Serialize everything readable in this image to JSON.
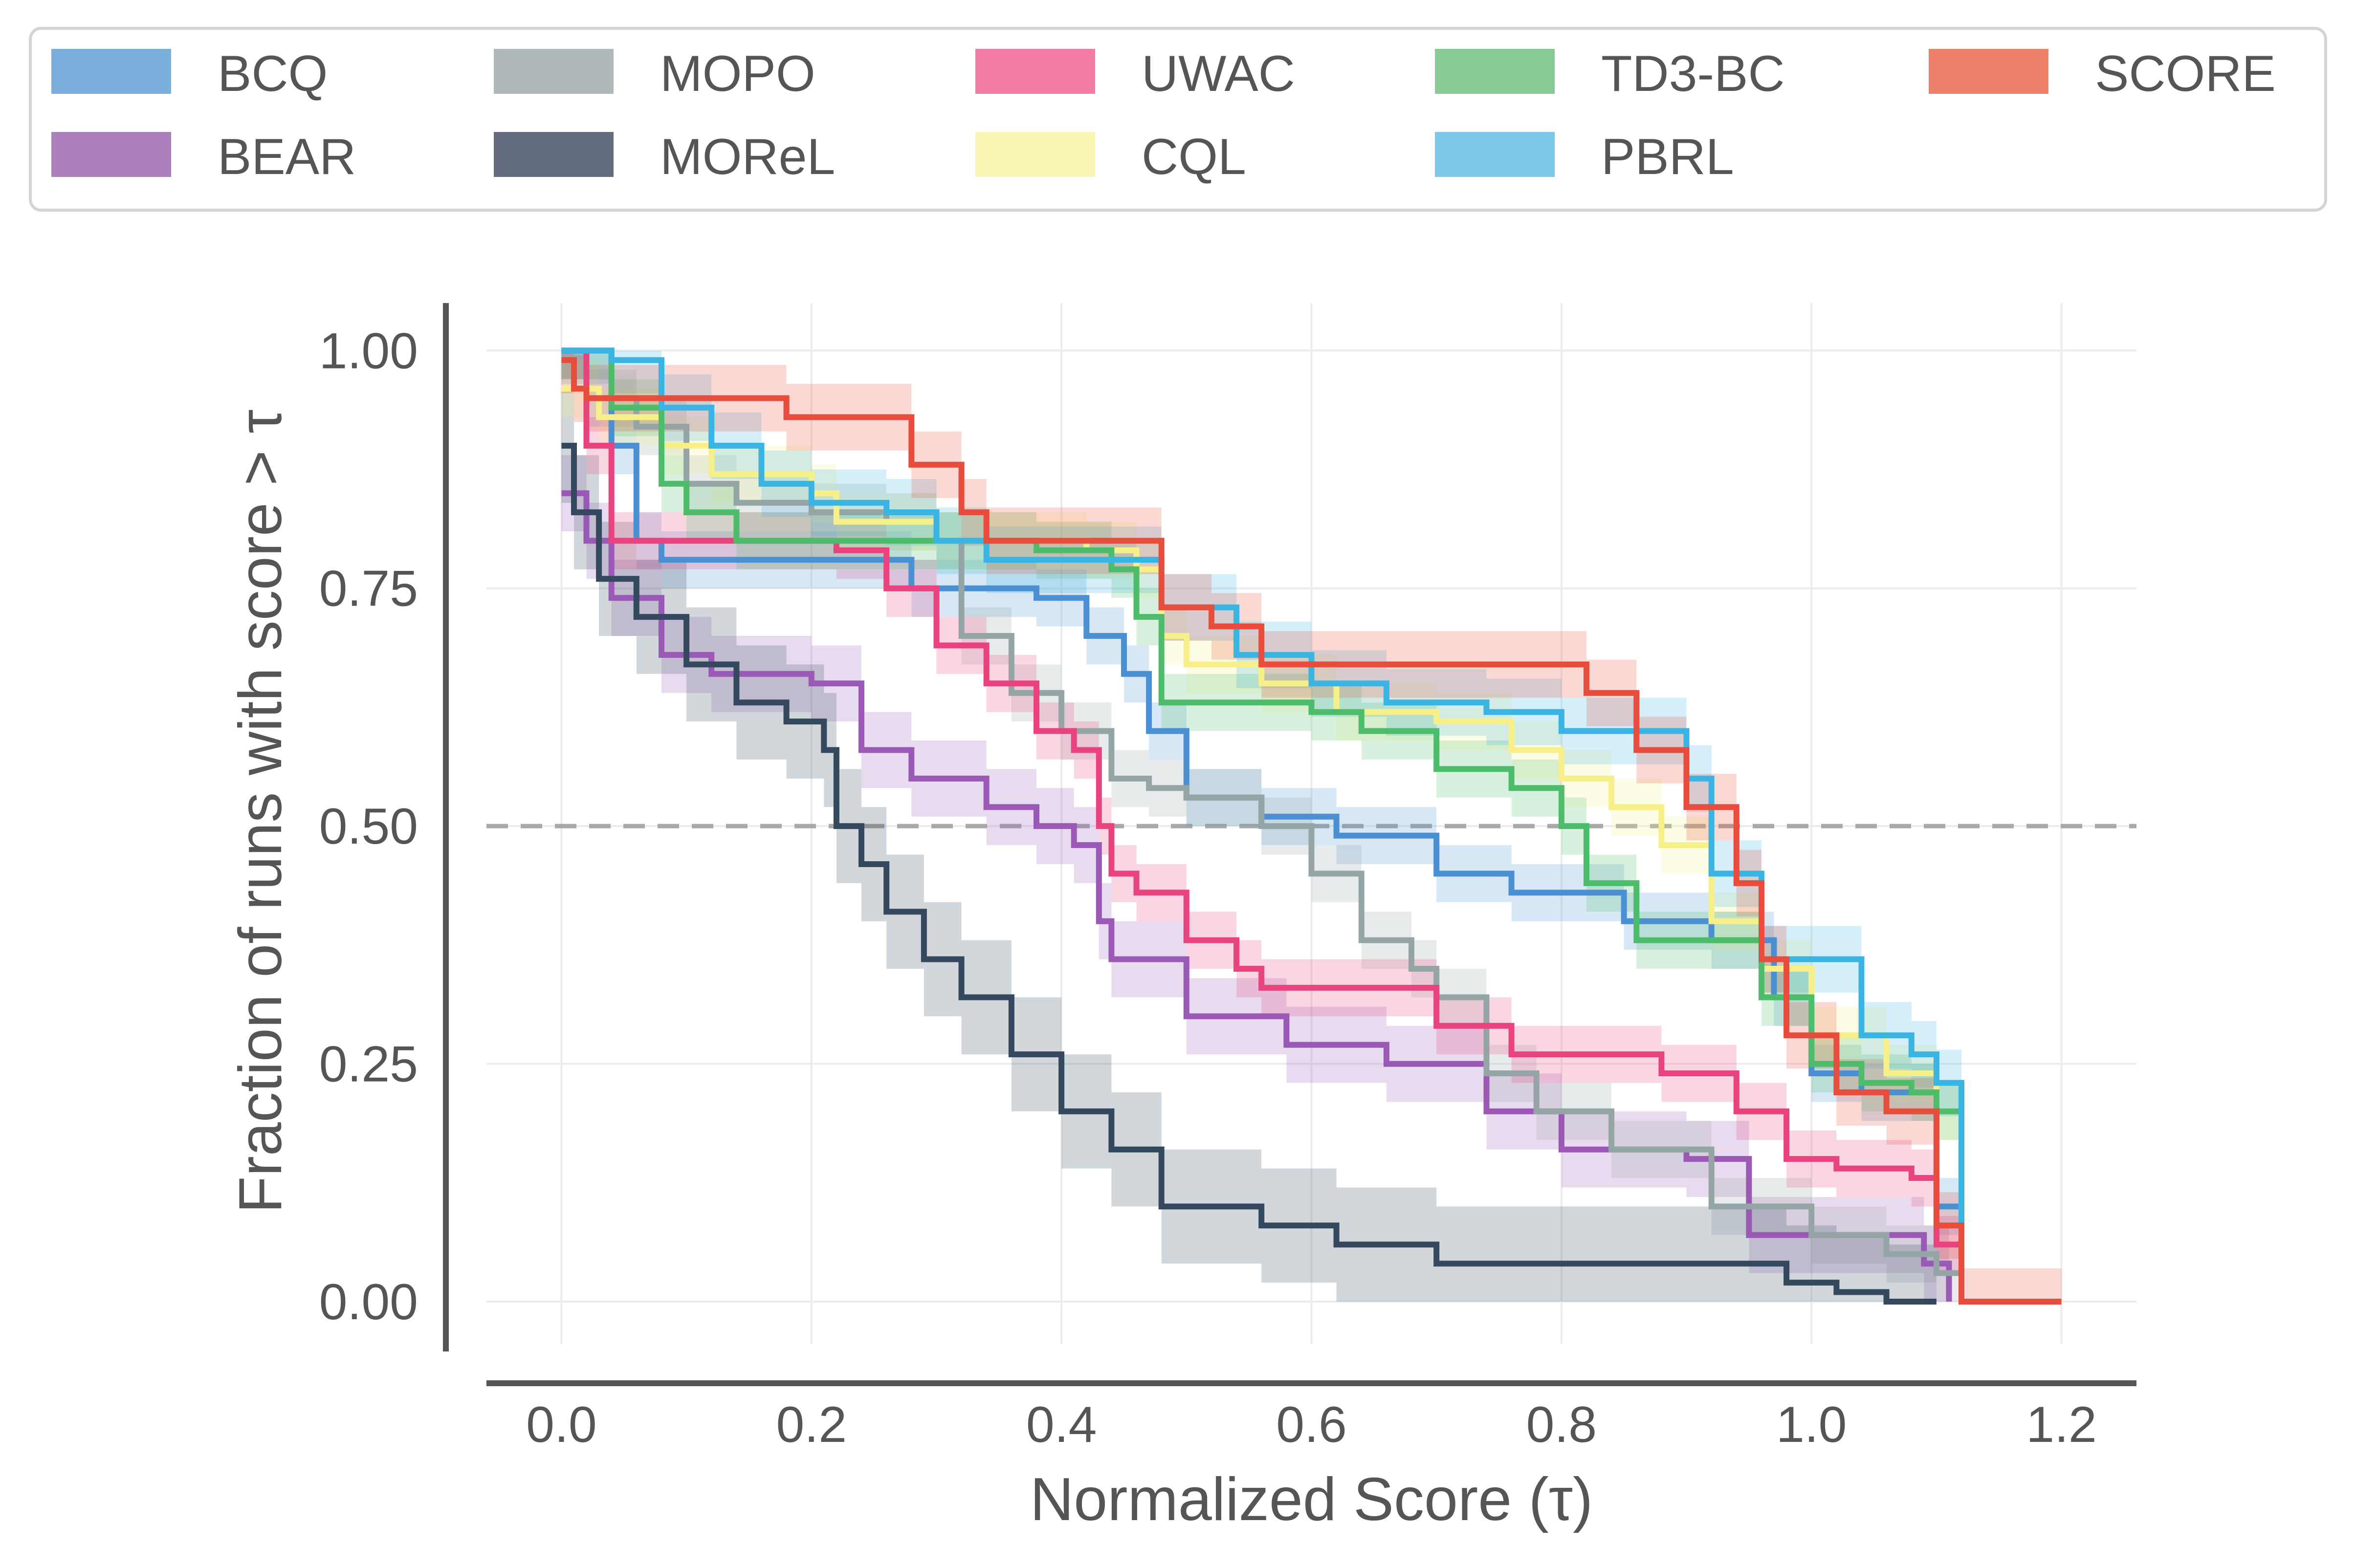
{
  "chart_data": {
    "type": "line",
    "xlabel": "Normalized Score (τ)",
    "ylabel": "Fraction of runs with score  > τ",
    "xlim": [
      -0.06,
      1.26
    ],
    "ylim": [
      -0.055,
      1.05
    ],
    "xticks": [
      0.0,
      0.2,
      0.4,
      0.6,
      0.8,
      1.0,
      1.2
    ],
    "xtick_labels": [
      "0.0",
      "0.2",
      "0.4",
      "0.6",
      "0.8",
      "1.0",
      "1.2"
    ],
    "yticks": [
      0.0,
      0.25,
      0.5,
      0.75,
      1.0
    ],
    "ytick_labels": [
      "0.00",
      "0.25",
      "0.50",
      "0.75",
      "1.00"
    ],
    "reference_line": {
      "y": 0.5,
      "style": "dashed",
      "color": "#a8a8a8"
    },
    "legend_position": "top",
    "series": [
      {
        "name": "BCQ",
        "color": "#4a90d2",
        "legend_color": "#7aaedd",
        "x": [
          0.0,
          0.02,
          0.04,
          0.06,
          0.08,
          0.1,
          0.16,
          0.22,
          0.28,
          0.32,
          0.38,
          0.42,
          0.45,
          0.47,
          0.5,
          0.56,
          0.62,
          0.7,
          0.76,
          0.85,
          0.92,
          0.97,
          1.0,
          1.04,
          1.1,
          1.12
        ],
        "y": [
          1.0,
          0.95,
          0.9,
          0.8,
          0.78,
          0.78,
          0.78,
          0.78,
          0.75,
          0.75,
          0.74,
          0.7,
          0.66,
          0.6,
          0.53,
          0.51,
          0.49,
          0.45,
          0.43,
          0.4,
          0.38,
          0.32,
          0.24,
          0.22,
          0.1,
          0.0
        ],
        "band": 0.03
      },
      {
        "name": "BEAR",
        "color": "#9b59b6",
        "legend_color": "#ad7fbd",
        "x": [
          0.0,
          0.02,
          0.04,
          0.08,
          0.12,
          0.2,
          0.24,
          0.28,
          0.34,
          0.38,
          0.41,
          0.43,
          0.44,
          0.5,
          0.58,
          0.66,
          0.74,
          0.8,
          0.9,
          0.95,
          1.0,
          1.06,
          1.09,
          1.11
        ],
        "y": [
          0.85,
          0.8,
          0.74,
          0.68,
          0.66,
          0.65,
          0.58,
          0.55,
          0.52,
          0.5,
          0.48,
          0.4,
          0.36,
          0.3,
          0.27,
          0.25,
          0.2,
          0.16,
          0.15,
          0.07,
          0.07,
          0.07,
          0.04,
          0.0
        ],
        "band": 0.04
      },
      {
        "name": "MOPO",
        "color": "#95a5a6",
        "legend_color": "#b0b9ba",
        "x": [
          0.0,
          0.04,
          0.06,
          0.1,
          0.14,
          0.2,
          0.26,
          0.3,
          0.32,
          0.36,
          0.4,
          0.44,
          0.47,
          0.5,
          0.56,
          0.6,
          0.64,
          0.68,
          0.7,
          0.74,
          0.78,
          0.84,
          0.92,
          1.0,
          1.06,
          1.1,
          1.12
        ],
        "y": [
          1.0,
          0.95,
          0.92,
          0.86,
          0.84,
          0.83,
          0.82,
          0.8,
          0.7,
          0.64,
          0.6,
          0.55,
          0.54,
          0.53,
          0.5,
          0.45,
          0.38,
          0.35,
          0.32,
          0.24,
          0.2,
          0.16,
          0.1,
          0.07,
          0.05,
          0.03,
          0.0
        ],
        "band": 0.03
      },
      {
        "name": "MOReL",
        "color": "#34495e",
        "legend_color": "#626c7e",
        "x": [
          0.0,
          0.01,
          0.03,
          0.06,
          0.1,
          0.14,
          0.18,
          0.21,
          0.22,
          0.24,
          0.26,
          0.29,
          0.32,
          0.36,
          0.4,
          0.44,
          0.48,
          0.5,
          0.56,
          0.62,
          0.7,
          0.76,
          0.9,
          0.98,
          1.02,
          1.06,
          1.1
        ],
        "y": [
          0.9,
          0.83,
          0.76,
          0.72,
          0.67,
          0.63,
          0.61,
          0.58,
          0.5,
          0.46,
          0.41,
          0.36,
          0.32,
          0.26,
          0.2,
          0.16,
          0.1,
          0.1,
          0.08,
          0.06,
          0.04,
          0.04,
          0.04,
          0.02,
          0.01,
          0.0,
          0.0
        ],
        "band": 0.06
      },
      {
        "name": "UWAC",
        "color": "#e8437e",
        "legend_color": "#f27ca6",
        "x": [
          0.0,
          0.02,
          0.04,
          0.1,
          0.16,
          0.22,
          0.26,
          0.3,
          0.34,
          0.38,
          0.41,
          0.43,
          0.44,
          0.46,
          0.5,
          0.54,
          0.56,
          0.66,
          0.7,
          0.76,
          0.82,
          0.88,
          0.92,
          0.94,
          0.98,
          1.02,
          1.08,
          1.1,
          1.12
        ],
        "y": [
          1.0,
          0.9,
          0.8,
          0.8,
          0.8,
          0.79,
          0.75,
          0.69,
          0.65,
          0.6,
          0.58,
          0.5,
          0.45,
          0.43,
          0.38,
          0.35,
          0.33,
          0.33,
          0.29,
          0.26,
          0.26,
          0.24,
          0.24,
          0.2,
          0.15,
          0.14,
          0.13,
          0.06,
          0.0
        ],
        "band": 0.03
      },
      {
        "name": "CQL",
        "color": "#f7f089",
        "legend_color": "#f8f4b4",
        "x": [
          0.0,
          0.03,
          0.08,
          0.12,
          0.2,
          0.22,
          0.3,
          0.36,
          0.42,
          0.46,
          0.48,
          0.5,
          0.56,
          0.62,
          0.7,
          0.76,
          0.8,
          0.84,
          0.88,
          0.92,
          0.96,
          1.0,
          1.06,
          1.1,
          1.12
        ],
        "y": [
          0.96,
          0.93,
          0.9,
          0.87,
          0.85,
          0.82,
          0.8,
          0.8,
          0.79,
          0.77,
          0.7,
          0.67,
          0.65,
          0.62,
          0.61,
          0.58,
          0.55,
          0.52,
          0.48,
          0.4,
          0.35,
          0.28,
          0.24,
          0.2,
          0.0
        ],
        "band": 0.03
      },
      {
        "name": "TD3-BC",
        "color": "#4dbd6b",
        "legend_color": "#88ca95",
        "x": [
          0.0,
          0.04,
          0.08,
          0.1,
          0.14,
          0.26,
          0.34,
          0.38,
          0.44,
          0.46,
          0.48,
          0.52,
          0.6,
          0.64,
          0.7,
          0.76,
          0.8,
          0.82,
          0.86,
          0.9,
          0.96,
          1.0,
          1.04,
          1.08,
          1.1,
          1.12
        ],
        "y": [
          1.0,
          0.94,
          0.86,
          0.83,
          0.8,
          0.8,
          0.8,
          0.79,
          0.77,
          0.72,
          0.63,
          0.63,
          0.62,
          0.6,
          0.56,
          0.54,
          0.5,
          0.44,
          0.38,
          0.38,
          0.32,
          0.25,
          0.23,
          0.22,
          0.2,
          0.0
        ],
        "band": 0.03
      },
      {
        "name": "PBRL",
        "color": "#3ab4e3",
        "legend_color": "#7bc8e8",
        "x": [
          0.0,
          0.04,
          0.08,
          0.12,
          0.16,
          0.2,
          0.26,
          0.3,
          0.34,
          0.4,
          0.44,
          0.48,
          0.54,
          0.6,
          0.66,
          0.74,
          0.8,
          0.84,
          0.88,
          0.9,
          0.92,
          0.96,
          1.0,
          1.04,
          1.08,
          1.1,
          1.12
        ],
        "y": [
          1.0,
          0.99,
          0.94,
          0.9,
          0.86,
          0.84,
          0.83,
          0.8,
          0.78,
          0.78,
          0.78,
          0.73,
          0.68,
          0.65,
          0.63,
          0.62,
          0.6,
          0.6,
          0.6,
          0.55,
          0.45,
          0.36,
          0.36,
          0.28,
          0.26,
          0.23,
          0.0
        ],
        "band": 0.035
      },
      {
        "name": "SCORE",
        "color": "#e74c3c",
        "legend_color": "#ec8068",
        "x": [
          0.0,
          0.01,
          0.02,
          0.08,
          0.14,
          0.18,
          0.26,
          0.28,
          0.32,
          0.34,
          0.4,
          0.46,
          0.48,
          0.52,
          0.56,
          0.62,
          0.7,
          0.78,
          0.82,
          0.86,
          0.9,
          0.94,
          0.96,
          0.98,
          1.02,
          1.06,
          1.1,
          1.12,
          1.2
        ],
        "y": [
          0.99,
          0.96,
          0.95,
          0.95,
          0.95,
          0.93,
          0.93,
          0.88,
          0.83,
          0.8,
          0.8,
          0.8,
          0.73,
          0.71,
          0.67,
          0.67,
          0.67,
          0.67,
          0.64,
          0.58,
          0.52,
          0.44,
          0.36,
          0.28,
          0.22,
          0.2,
          0.08,
          0.0,
          0.0
        ],
        "band": 0.035
      }
    ]
  }
}
